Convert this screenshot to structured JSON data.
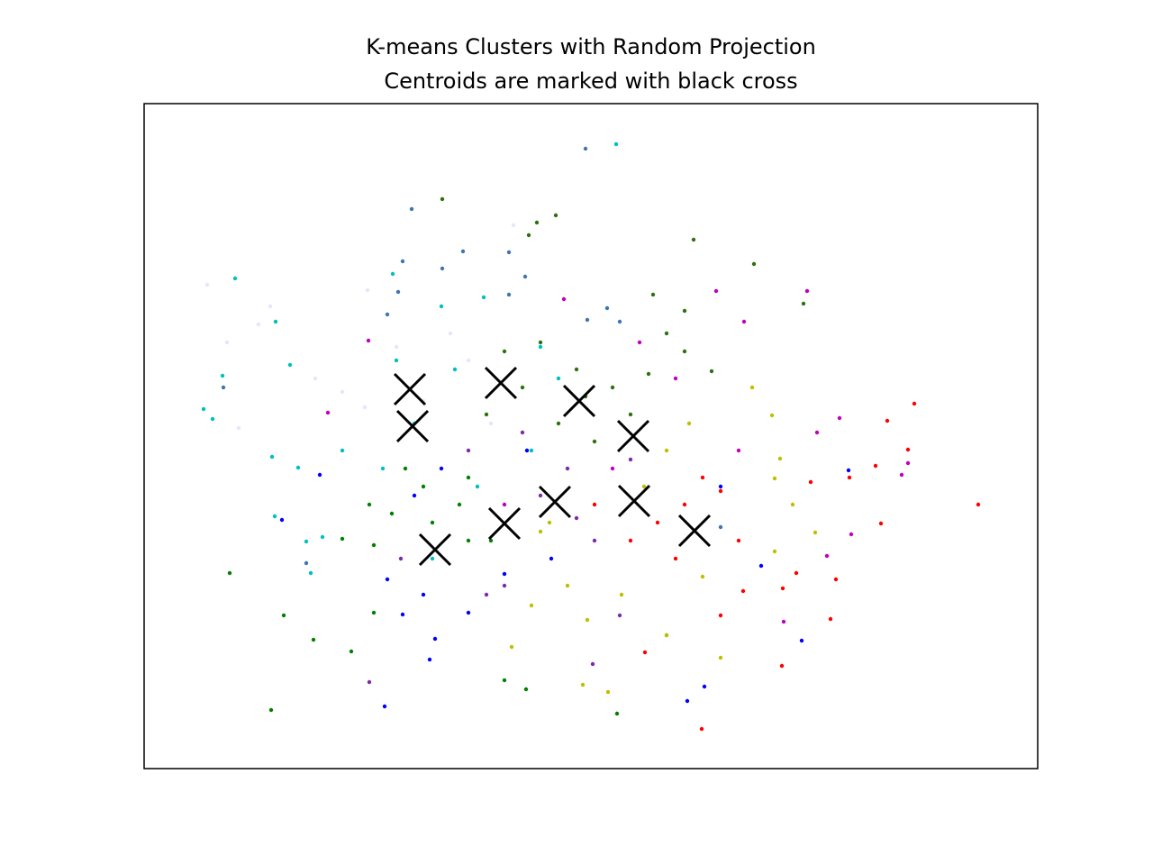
{
  "chart_data": {
    "type": "scatter",
    "title": "K-means Clusters with Random Projection",
    "subtitle": "Centroids are marked with black cross",
    "xlim": [
      0,
      992
    ],
    "ylim": [
      0,
      738
    ],
    "series": [
      {
        "color": "#e6e6fa",
        "x": [
          70,
          92,
          127,
          140,
          105,
          190,
          248,
          280,
          310,
          360,
          410,
          385,
          245,
          220,
          340
        ],
        "values": [
          537,
          473,
          493,
          513,
          378,
          433,
          531,
          468,
          408,
          453,
          603,
          383,
          401,
          418,
          483
        ]
      },
      {
        "color": "#00bfbf",
        "x": [
          101,
          87,
          76,
          66,
          146,
          162,
          142,
          171,
          145,
          180,
          185,
          198,
          276,
          265,
          280,
          330,
          345,
          377,
          440,
          460,
          220,
          300,
          370,
          320,
          430,
          524
        ],
        "values": [
          544,
          436,
          388,
          399,
          496,
          448,
          346,
          334,
          280,
          252,
          217,
          257,
          549,
          333,
          453,
          513,
          443,
          523,
          468,
          433,
          353,
          383,
          313,
          233,
          353,
          693
        ]
      },
      {
        "color": "#3f74b0",
        "x": [
          490,
          297,
          287,
          331,
          354,
          405,
          423,
          282,
          405,
          514,
          492,
          528,
          270,
          88,
          180,
          640
        ],
        "values": [
          688,
          621,
          563,
          555,
          574,
          573,
          546,
          529,
          526,
          511,
          498,
          496,
          504,
          423,
          228,
          268
        ]
      },
      {
        "color": "#008000",
        "x": [
          141,
          95,
          155,
          188,
          230,
          250,
          255,
          275,
          310,
          320,
          360,
          385,
          400,
          424,
          525,
          580,
          360,
          290,
          220,
          255,
          350
        ],
        "values": [
          65,
          217,
          170,
          143,
          130,
          293,
          248,
          283,
          313,
          273,
          323,
          253,
          98,
          88,
          61,
          148,
          253,
          333,
          255,
          173,
          293
        ]
      },
      {
        "color": "#2e7010",
        "x": [
          331,
          436,
          457,
          427,
          610,
          677,
          732,
          565,
          600,
          580,
          440,
          480,
          520,
          560,
          630,
          400,
          460,
          500,
          540,
          600,
          380,
          490,
          420
        ],
        "values": [
          632,
          606,
          614,
          592,
          587,
          560,
          516,
          526,
          508,
          483,
          473,
          443,
          423,
          438,
          441,
          463,
          383,
          363,
          393,
          463,
          393,
          413,
          423
        ]
      },
      {
        "color": "#0000ff",
        "x": [
          267,
          317,
          323,
          287,
          310,
          360,
          330,
          300,
          153,
          195,
          270,
          400,
          425,
          452,
          603,
          622,
          730,
          782,
          685,
          640
        ],
        "values": [
          69,
          121,
          144,
          171,
          193,
          173,
          333,
          303,
          276,
          326,
          210,
          216,
          353,
          233,
          75,
          91,
          142,
          331,
          225,
          313
        ]
      },
      {
        "color": "#7d2aa8",
        "x": [
          250,
          285,
          380,
          440,
          470,
          500,
          540,
          420,
          360,
          528,
          498,
          400,
          480
        ],
        "values": [
          96,
          233,
          193,
          303,
          333,
          253,
          343,
          373,
          353,
          170,
          116,
          203,
          278
        ]
      },
      {
        "color": "#bf00bf",
        "x": [
          736,
          635,
          666,
          772,
          747,
          848,
          841,
          785,
          710,
          758,
          590,
          660,
          550,
          466,
          249,
          204,
          400,
          520
        ],
        "values": [
          530,
          530,
          496,
          389,
          373,
          339,
          326,
          260,
          163,
          236,
          433,
          353,
          473,
          521,
          475,
          395,
          293,
          333
        ]
      },
      {
        "color": "#bfbf00",
        "x": [
          697,
          706,
          700,
          720,
          745,
          700,
          640,
          555,
          580,
          605,
          440,
          470,
          492,
          515,
          487,
          408,
          430,
          530,
          580,
          620,
          675,
          450
        ],
        "values": [
          392,
          344,
          322,
          293,
          262,
          241,
          123,
          313,
          353,
          383,
          263,
          203,
          165,
          85,
          93,
          135,
          181,
          193,
          148,
          213,
          423,
          273
        ]
      },
      {
        "color": "#ff0000",
        "x": [
          926,
          855,
          825,
          848,
          812,
          818,
          783,
          768,
          762,
          708,
          709,
          724,
          665,
          640,
          619,
          556,
          590,
          600,
          640,
          660,
          570,
          540,
          500,
          740,
          620
        ],
        "values": [
          293,
          405,
          386,
          354,
          336,
          272,
          323,
          210,
          166,
          114,
          200,
          217,
          197,
          170,
          44,
          129,
          233,
          293,
          308,
          253,
          273,
          253,
          293,
          318,
          323
        ]
      },
      {
        "color": "#000000",
        "marker": "x",
        "x": [
          295,
          298,
          396,
          483,
          543,
          456,
          400,
          323,
          544,
          611
        ],
        "values": [
          421,
          380,
          428,
          408,
          369,
          296,
          272,
          243,
          297,
          264
        ]
      }
    ]
  }
}
